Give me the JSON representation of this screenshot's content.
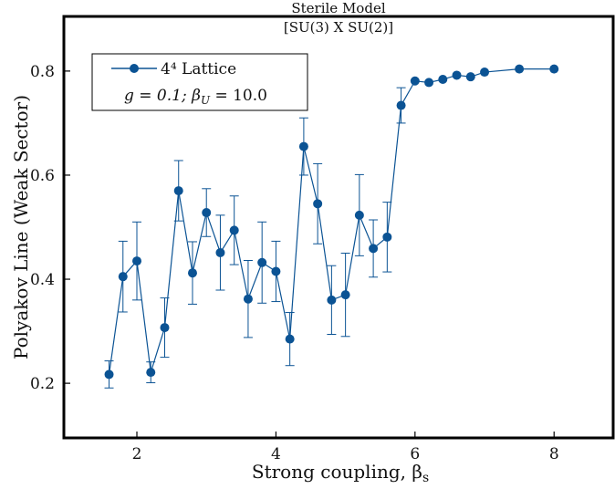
{
  "chart_data": {
    "type": "scatter",
    "title": "Sterile Model",
    "subtitle": "[SU(3) X SU(2)]",
    "xlabel": "Strong coupling, β",
    "xlabel_sub": "s",
    "ylabel": "Polyakov Line (Weak Sector)",
    "xlim": [
      0.95,
      8.85
    ],
    "ylim": [
      0.095,
      0.905
    ],
    "x_ticks": [
      2,
      4,
      6,
      8
    ],
    "x_tick_labels": [
      "2",
      "4",
      "6",
      "8"
    ],
    "y_ticks": [
      0.2,
      0.4,
      0.6,
      0.8
    ],
    "y_tick_labels": [
      "0.2",
      "0.4",
      "0.6",
      "0.8"
    ],
    "grid": false,
    "legend_position": "top-left",
    "series": [
      {
        "name": "4⁴ Lattice",
        "color": "#0b5394",
        "marker": "circle",
        "line": true,
        "x": [
          1.6,
          1.8,
          2.0,
          2.2,
          2.4,
          2.6,
          2.8,
          3.0,
          3.2,
          3.4,
          3.6,
          3.8,
          4.0,
          4.2,
          4.4,
          4.6,
          4.8,
          5.0,
          5.2,
          5.4,
          5.6,
          5.8,
          6.0,
          6.2,
          6.4,
          6.6,
          6.8,
          7.0,
          7.5,
          8.0
        ],
        "y": [
          0.217,
          0.405,
          0.435,
          0.221,
          0.307,
          0.57,
          0.412,
          0.528,
          0.451,
          0.494,
          0.362,
          0.432,
          0.415,
          0.285,
          0.655,
          0.545,
          0.36,
          0.37,
          0.523,
          0.459,
          0.481,
          0.734,
          0.781,
          0.778,
          0.784,
          0.792,
          0.789,
          0.798,
          0.804,
          0.804
        ],
        "err": [
          0.026,
          0.068,
          0.075,
          0.02,
          0.057,
          0.058,
          0.06,
          0.046,
          0.072,
          0.066,
          0.074,
          0.078,
          0.058,
          0.051,
          0.055,
          0.077,
          0.066,
          0.08,
          0.078,
          0.055,
          0.067,
          0.034,
          0.0,
          0.0,
          0.0,
          0.0,
          0.0,
          0.0,
          0.0,
          0.0
        ]
      }
    ],
    "annotation": "g = 0.1;  β",
    "annotation_sub": "U",
    "annotation_value": " = 10.0"
  }
}
